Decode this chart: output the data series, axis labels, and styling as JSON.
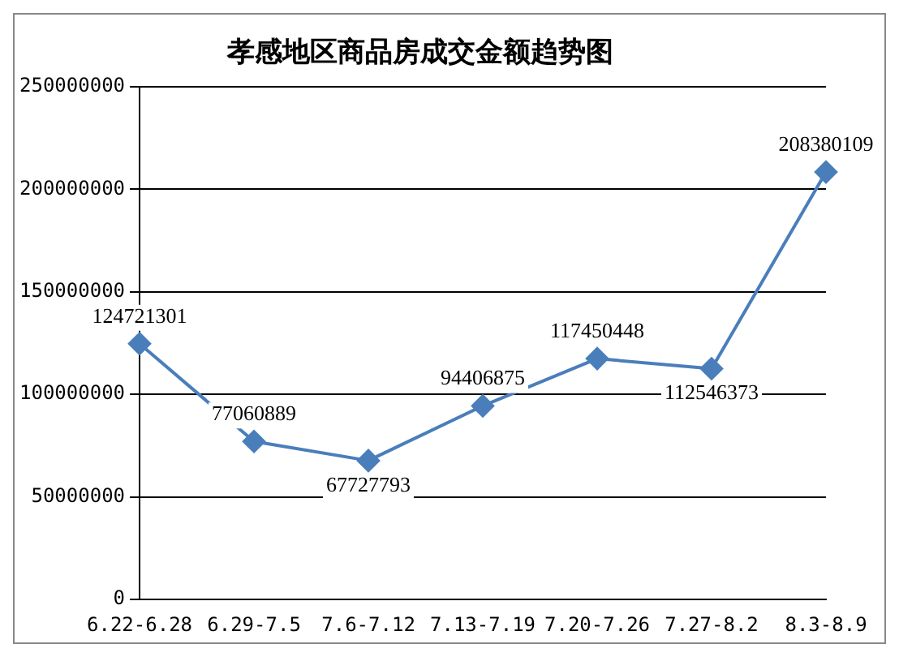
{
  "chart_data": {
    "type": "line",
    "title": "孝感地区商品房成交金额趋势图",
    "categories": [
      "6.22-6.28",
      "6.29-7.5",
      "7.6-7.12",
      "7.13-7.19",
      "7.20-7.26",
      "7.27-8.2",
      "8.3-8.9"
    ],
    "values": [
      124721301,
      77060889,
      67727793,
      94406875,
      117450448,
      112546373,
      208380109
    ],
    "color": "#4a7ebb",
    "ylim": [
      0,
      250000000
    ],
    "yticks": [
      0,
      50000000,
      100000000,
      150000000,
      200000000,
      250000000
    ],
    "grid": "y",
    "marker": "diamond",
    "line_style": "solid",
    "data_labels": true,
    "legend": false
  }
}
